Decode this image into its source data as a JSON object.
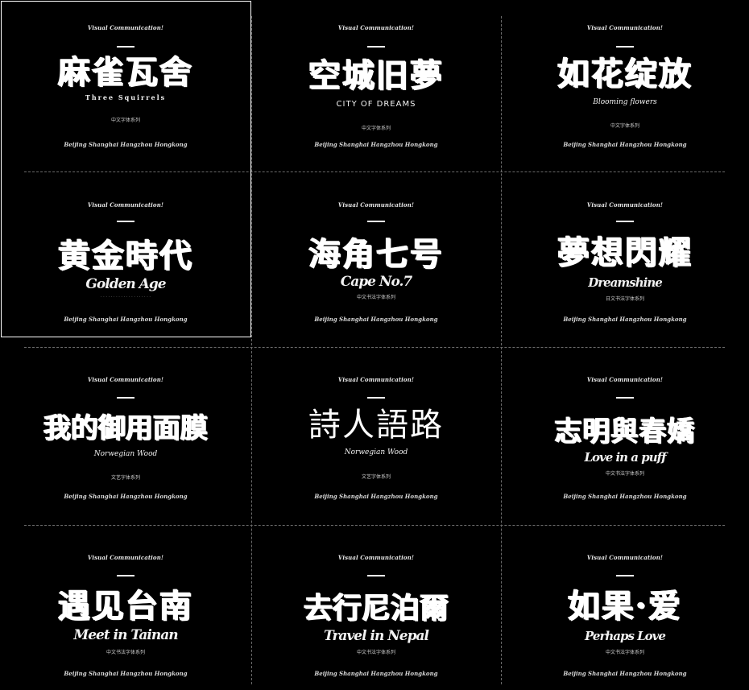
{
  "posters": [
    {
      "tagline": "Visual Communication!",
      "title": "麻雀瓦舍",
      "subtitle": "Three Squirrels",
      "series": "中文字体系列",
      "cities": "Beijing Shanghai Hangzhou Hongkong"
    },
    {
      "tagline": "Visual Communication!",
      "title": "空城旧夢",
      "subtitle": "CITY OF DREAMS",
      "series": "中文字体系列",
      "cities": "Beijing Shanghai Hangzhou Hongkong"
    },
    {
      "tagline": "Visual Communication!",
      "title": "如花绽放",
      "subtitle": "Blooming flowers",
      "series": "中文字体系列",
      "cities": "Beijing Shanghai Hangzhou Hongkong"
    },
    {
      "tagline": "Visual Communication!",
      "title": "黄金時代",
      "subtitle": "Golden Age",
      "series": "",
      "cities": "Beijing Shanghai Hangzhou Hongkong"
    },
    {
      "tagline": "Visual Communication!",
      "title": "海角七号",
      "subtitle": "Cape No.7",
      "series": "中文书法字体系列",
      "cities": "Beijing Shanghai Hangzhou Hongkong"
    },
    {
      "tagline": "Visual Communication!",
      "title": "夢想閃耀",
      "subtitle": "Dreamshine",
      "series": "日文书法字体系列",
      "cities": "Beijing Shanghai Hangzhou Hongkong"
    },
    {
      "tagline": "Visual Communication!",
      "title": "我的御用面膜",
      "subtitle": "Norwegian Wood",
      "series": "文艺字体系列",
      "cities": "Beijing Shanghai Hangzhou Hongkong"
    },
    {
      "tagline": "Visual Communication!",
      "title": "詩人語路",
      "subtitle": "Norwegian Wood",
      "series": "文艺字体系列",
      "cities": "Beijing Shanghai Hangzhou Hongkong"
    },
    {
      "tagline": "Visual Communication!",
      "title": "志明與春嬌",
      "subtitle": "Love in a puff",
      "series": "中文书法字体系列",
      "cities": "Beijing Shanghai Hangzhou Hongkong"
    },
    {
      "tagline": "Visual Communication!",
      "title": "遇见台南",
      "subtitle": "Meet in Tainan",
      "series": "中文书法字体系列",
      "cities": "Beijing Shanghai Hangzhou Hongkong"
    },
    {
      "tagline": "Visual Communication!",
      "title": "去行尼泊爾",
      "subtitle": "Travel in Nepal",
      "series": "中文书法字体系列",
      "cities": "Beijing Shanghai Hangzhou Hongkong"
    },
    {
      "tagline": "Visual Communication!",
      "title": "如果·爱",
      "subtitle": "Perhaps Love",
      "series": "中文书法字体系列",
      "cities": "Beijing Shanghai Hangzhou Hongkong"
    }
  ]
}
